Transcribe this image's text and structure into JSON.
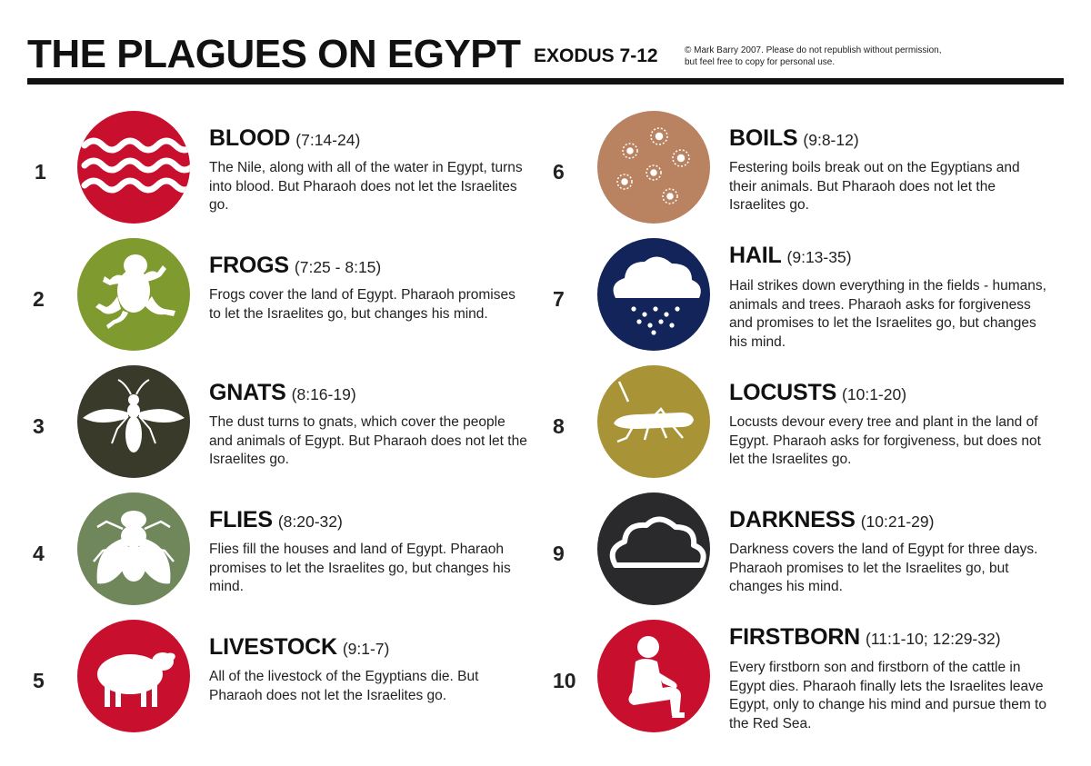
{
  "header": {
    "title": "THE PLAGUES ON EGYPT",
    "subtitle": "EXODUS 7-12",
    "copyright_line1": "© Mark Barry 2007. Please do not republish without permission,",
    "copyright_line2": "but feel free to copy for personal use."
  },
  "plagues": [
    {
      "number": "1",
      "name": "BLOOD",
      "ref": "(7:14-24)",
      "description": "The Nile, along with all of the water in Egypt, turns into blood. But Pharaoh does not let the Israelites go.",
      "icon": "waves-icon",
      "color": "#c8102e"
    },
    {
      "number": "2",
      "name": "FROGS",
      "ref": "(7:25 - 8:15)",
      "description": "Frogs cover the land of Egypt. Pharaoh promises to let the Israelites go, but changes his mind.",
      "icon": "frog-icon",
      "color": "#7f9a2e"
    },
    {
      "number": "3",
      "name": "GNATS",
      "ref": "(8:16-19)",
      "description": "The dust turns to gnats, which cover the people and animals of Egypt. But Pharaoh does not let the Israelites go.",
      "icon": "gnat-icon",
      "color": "#3a3a2a"
    },
    {
      "number": "4",
      "name": "FLIES",
      "ref": "(8:20-32)",
      "description": "Flies fill the houses and land of Egypt. Pharaoh promises to let the Israelites go, but changes his mind.",
      "icon": "fly-icon",
      "color": "#6f875a"
    },
    {
      "number": "5",
      "name": "LIVESTOCK",
      "ref": "(9:1-7)",
      "description": "All of the livestock of the Egyptians die. But Pharaoh does not let the Israelites go.",
      "icon": "sheep-icon",
      "color": "#c8102e"
    },
    {
      "number": "6",
      "name": "BOILS",
      "ref": "(9:8-12)",
      "description": "Festering boils break out on the Egyptians and their animals. But Pharaoh does not let the Israelites go.",
      "icon": "boils-icon",
      "color": "#b98261"
    },
    {
      "number": "7",
      "name": "HAIL",
      "ref": "(9:13-35)",
      "description": "Hail strikes down everything in the fields - humans, animals and trees. Pharaoh asks for forgiveness and promises to let the Israelites go, but changes his mind.",
      "icon": "hail-cloud-icon",
      "color": "#13245b"
    },
    {
      "number": "8",
      "name": "LOCUSTS",
      "ref": "(10:1-20)",
      "description": "Locusts devour every tree and plant in the land of Egypt. Pharaoh asks for forgiveness, but does not let the Israelites go.",
      "icon": "locust-icon",
      "color": "#a89437"
    },
    {
      "number": "9",
      "name": "DARKNESS",
      "ref": "(10:21-29)",
      "description": "Darkness covers the land of Egypt for three days. Pharaoh promises to let the Israelites go, but changes his mind.",
      "icon": "dark-cloud-icon",
      "color": "#2a2a2c"
    },
    {
      "number": "10",
      "name": "FIRSTBORN",
      "ref": "(11:1-10; 12:29-32)",
      "description": "Every firstborn son and firstborn of the cattle in Egypt dies. Pharaoh finally lets the Israelites leave Egypt, only to change his mind and pursue them to the Red Sea.",
      "icon": "seated-child-icon",
      "color": "#c8102e"
    }
  ]
}
